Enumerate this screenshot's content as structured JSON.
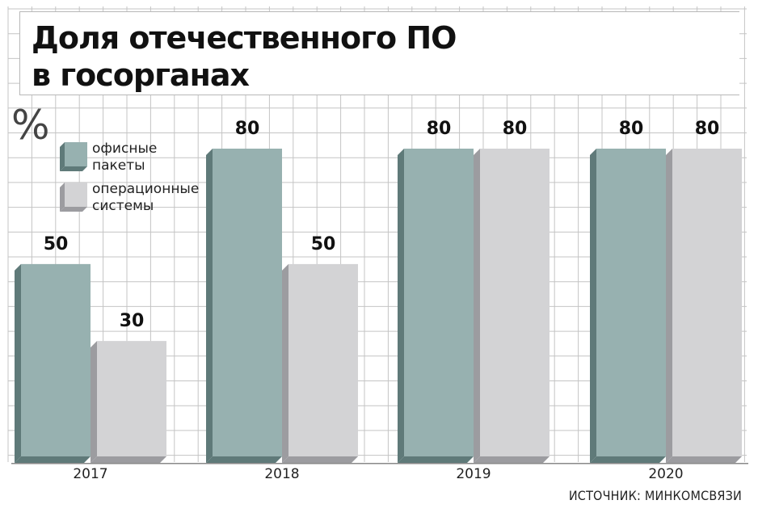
{
  "title_lines": [
    "Доля отечественного ПО",
    "в госорганах"
  ],
  "unit": "%",
  "source": "ИСТОЧНИК: МИНКОМСВЯЗИ",
  "colors": {
    "office": "#97b1b0",
    "office_dark": "#5f7a79",
    "os": "#d3d3d5",
    "os_dark": "#9c9ca0",
    "grid": "#c4c4c4"
  },
  "chart_data": {
    "type": "bar",
    "categories": [
      "2017",
      "2018",
      "2019",
      "2020"
    ],
    "series": [
      {
        "name": "офисные пакеты",
        "values": [
          50,
          80,
          80,
          80
        ]
      },
      {
        "name": "операционные системы",
        "values": [
          30,
          50,
          80,
          80
        ]
      }
    ],
    "ylim": [
      0,
      80
    ],
    "grid": true,
    "legend_position": "top-left",
    "legend": [
      {
        "lines": [
          "офисные",
          "пакеты"
        ]
      },
      {
        "lines": [
          "операционные",
          "системы"
        ]
      }
    ]
  }
}
